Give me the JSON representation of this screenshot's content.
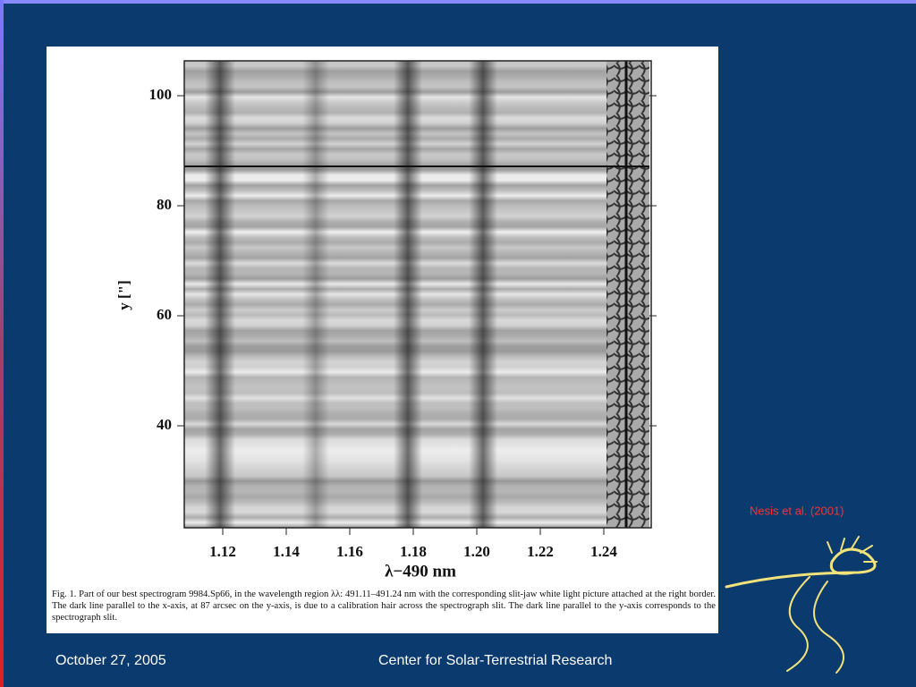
{
  "figure": {
    "y_axis_label": "y [\"]",
    "x_axis_label": "λ−490 nm",
    "yticks": [
      "100",
      "80",
      "60",
      "40"
    ],
    "xticks": [
      "1.12",
      "1.14",
      "1.16",
      "1.18",
      "1.20",
      "1.22",
      "1.24"
    ],
    "caption": "Fig. 1. Part of our best spectrogram 9984.Sp66, in the wavelength region λλ: 491.11–491.24 nm with the corresponding slit-jaw white light picture attached at the right border. The dark line parallel to the x-axis, at 87 arcsec on the y-axis, is due to a calibration hair across the spectrograph slit. The dark line parallel to the y-axis corresponds to the spectrograph slit."
  },
  "citation": "Nesis et al. (2001)",
  "footer": {
    "date": "October 27, 2005",
    "organization": "Center for Solar-Terrestrial Research"
  }
}
